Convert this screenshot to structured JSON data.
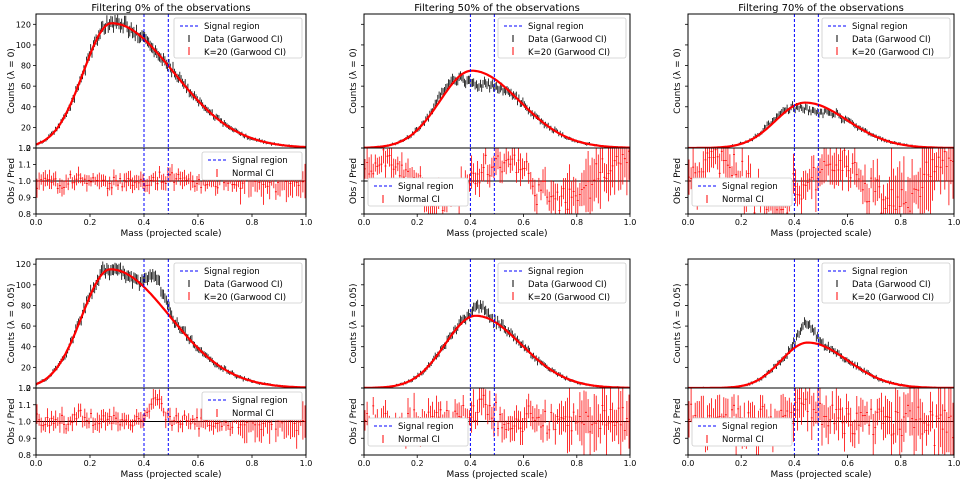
{
  "chart_data": [
    {
      "type": "line",
      "title": "Filtering 0% of the observations",
      "ylabel_main": "Counts (λ = 0)",
      "ylabel_ratio": "Obs / Pred",
      "xlabel": "Mass (projected scale)",
      "xlim": [
        0,
        1
      ],
      "ylim_main": [
        0,
        130
      ],
      "ylim_ratio": [
        0.8,
        1.2
      ],
      "main_yticks": [
        "0",
        "20",
        "40",
        "60",
        "80",
        "100",
        "120"
      ],
      "ratio_yticks": [
        "0.8",
        "0.9",
        "1.0",
        "1.1",
        "1.2"
      ],
      "xticks": [
        "0.0",
        "0.2",
        "0.4",
        "0.6",
        "0.8",
        "1.0"
      ],
      "signal_region": [
        0.4,
        0.49
      ],
      "peak_x": 0.28,
      "fit_peak": 121,
      "fit_sigma_left": 0.105,
      "fit_sigma_right": 0.23,
      "data_mode": "match",
      "ratio_noise": 0.035,
      "legend_main": [
        "Signal region",
        "Data (Garwood CI)",
        "K=20 (Garwood CI)"
      ],
      "legend_ratio": [
        "Signal region",
        "Normal CI"
      ]
    },
    {
      "type": "line",
      "title": "Filtering 50% of the observations",
      "ylabel_main": "Counts (λ = 0)",
      "ylabel_ratio": "Obs / Pred",
      "xlabel": "Mass (projected scale)",
      "xlim": [
        0,
        1
      ],
      "ylim_main": [
        0,
        130
      ],
      "ylim_ratio": [
        0.8,
        1.2
      ],
      "main_yticks": [],
      "ratio_yticks": [],
      "xticks": [
        "0.0",
        "0.2",
        "0.4",
        "0.6",
        "0.8",
        "1.0"
      ],
      "signal_region": [
        0.4,
        0.49
      ],
      "peak_x": 0.405,
      "fit_peak": 75,
      "fit_sigma_left": 0.12,
      "fit_sigma_right": 0.18,
      "data_mode": "dip",
      "ratio_noise": 0.06,
      "legend_main": [
        "Signal region",
        "Data (Garwood CI)",
        "K=20 (Garwood CI)"
      ],
      "legend_ratio": [
        "Signal region",
        "Normal CI"
      ]
    },
    {
      "type": "line",
      "title": "Filtering 70% of the observations",
      "ylabel_main": "Counts (λ = 0)",
      "ylabel_ratio": "Obs / Pred",
      "xlabel": "Mass (projected scale)",
      "xlim": [
        0,
        1
      ],
      "ylim_main": [
        0,
        130
      ],
      "ylim_ratio": [
        0.8,
        1.2
      ],
      "main_yticks": [],
      "ratio_yticks": [],
      "xticks": [
        "0.0",
        "0.2",
        "0.4",
        "0.6",
        "0.8",
        "1.0"
      ],
      "signal_region": [
        0.4,
        0.49
      ],
      "peak_x": 0.44,
      "fit_peak": 44,
      "fit_sigma_left": 0.11,
      "fit_sigma_right": 0.16,
      "data_mode": "dip",
      "ratio_noise": 0.08,
      "legend_main": [
        "Signal region",
        "Data (Garwood CI)",
        "K=20 (Garwood CI)"
      ],
      "legend_ratio": [
        "Signal region",
        "Normal CI"
      ]
    },
    {
      "type": "line",
      "title": "",
      "ylabel_main": "Counts (λ = 0.05)",
      "ylabel_ratio": "Obs / Pred",
      "xlabel": "Mass (projected scale)",
      "xlim": [
        0,
        1
      ],
      "ylim_main": [
        0,
        125
      ],
      "ylim_ratio": [
        0.8,
        1.2
      ],
      "main_yticks": [
        "0",
        "20",
        "40",
        "60",
        "80",
        "100",
        "120"
      ],
      "ratio_yticks": [
        "0.8",
        "0.9",
        "1.0",
        "1.1",
        "1.2"
      ],
      "xticks": [
        "0.0",
        "0.2",
        "0.4",
        "0.6",
        "0.8",
        "1.0"
      ],
      "signal_region": [
        0.4,
        0.49
      ],
      "peak_x": 0.275,
      "fit_peak": 115,
      "fit_sigma_left": 0.105,
      "fit_sigma_right": 0.22,
      "data_mode": "bump",
      "bump_center": 0.445,
      "bump_height": 22,
      "ratio_noise": 0.035,
      "legend_main": [
        "Signal region",
        "Data (Garwood CI)",
        "K=20 (Garwood CI)"
      ],
      "legend_ratio": [
        "Signal region",
        "Normal CI"
      ]
    },
    {
      "type": "line",
      "title": "",
      "ylabel_main": "Counts (λ = 0.05)",
      "ylabel_ratio": "Obs / Pred",
      "xlabel": "Mass (projected scale)",
      "xlim": [
        0,
        1
      ],
      "ylim_main": [
        0,
        125
      ],
      "ylim_ratio": [
        0.8,
        1.2
      ],
      "main_yticks": [],
      "ratio_yticks": [],
      "xticks": [
        "0.0",
        "0.2",
        "0.4",
        "0.6",
        "0.8",
        "1.0"
      ],
      "signal_region": [
        0.4,
        0.49
      ],
      "peak_x": 0.42,
      "fit_peak": 70,
      "fit_sigma_left": 0.115,
      "fit_sigma_right": 0.17,
      "data_mode": "bump",
      "bump_center": 0.43,
      "bump_height": 8,
      "ratio_noise": 0.06,
      "legend_main": [
        "Signal region",
        "Data (Garwood CI)",
        "K=20 (Garwood CI)"
      ],
      "legend_ratio": [
        "Signal region",
        "Normal CI"
      ]
    },
    {
      "type": "line",
      "title": "",
      "ylabel_main": "Counts (λ = 0.05)",
      "ylabel_ratio": "Obs / Pred",
      "xlabel": "Mass (projected scale)",
      "xlim": [
        0,
        1
      ],
      "ylim_main": [
        0,
        125
      ],
      "ylim_ratio": [
        0.8,
        1.2
      ],
      "main_yticks": [],
      "ratio_yticks": [],
      "xticks": [
        "0.0",
        "0.2",
        "0.4",
        "0.6",
        "0.8",
        "1.0"
      ],
      "signal_region": [
        0.4,
        0.49
      ],
      "peak_x": 0.45,
      "fit_peak": 44,
      "fit_sigma_left": 0.1,
      "fit_sigma_right": 0.15,
      "data_mode": "bump",
      "bump_center": 0.445,
      "bump_height": 18,
      "ratio_noise": 0.08,
      "legend_main": [
        "Signal region",
        "Data (Garwood CI)",
        "K=20 (Garwood CI)"
      ],
      "legend_ratio": [
        "Signal region",
        "Normal CI"
      ]
    }
  ],
  "colors": {
    "fit": "#ff0000",
    "data": "#000000",
    "signal": "#0000ff",
    "ratio": "#ff0000"
  }
}
